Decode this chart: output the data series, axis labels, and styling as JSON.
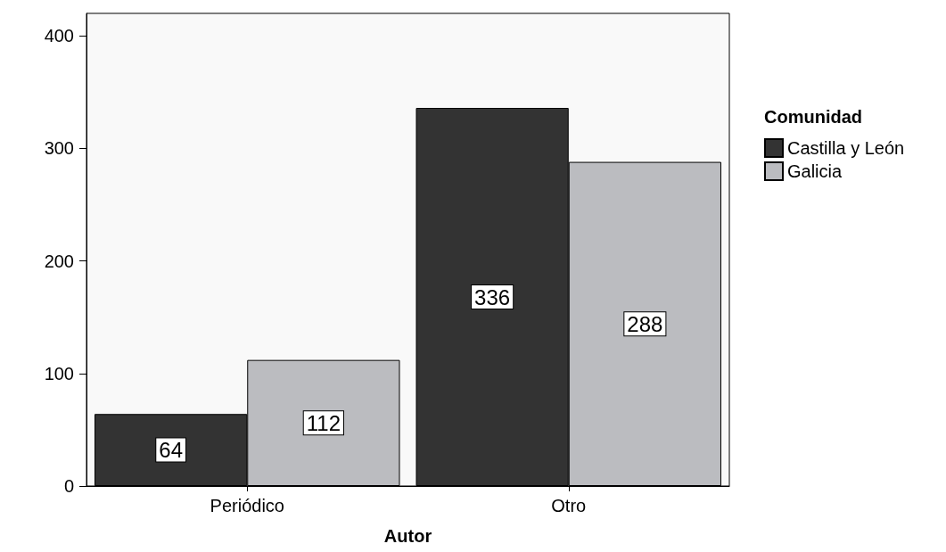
{
  "chart_data": {
    "type": "bar",
    "xlabel": "Autor",
    "legend_title": "Comunidad",
    "categories": [
      "Periódico",
      "Otro"
    ],
    "series": [
      {
        "name": "Castilla y León",
        "color": "#333333",
        "values": [
          64,
          336
        ]
      },
      {
        "name": "Galicia",
        "color": "#bbbcc0",
        "values": [
          112,
          288
        ]
      }
    ],
    "ylim": [
      0,
      420
    ],
    "yticks": [
      0,
      100,
      200,
      300,
      400
    ],
    "grid": false,
    "legend": "right",
    "data_labels": true
  }
}
